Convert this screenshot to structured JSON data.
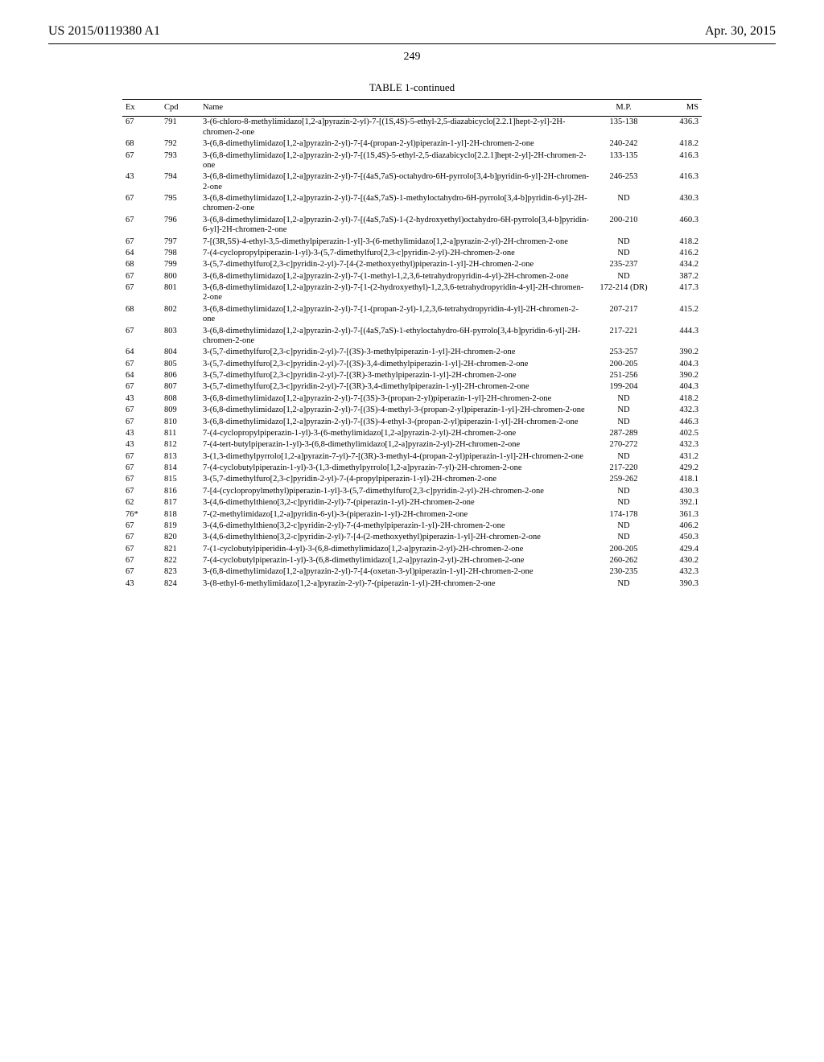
{
  "header": {
    "pub_number": "US 2015/0119380 A1",
    "pub_date": "Apr. 30, 2015"
  },
  "page_number": "249",
  "table": {
    "title": "TABLE 1-continued",
    "columns": [
      "Ex",
      "Cpd",
      "Name",
      "M.P.",
      "MS"
    ],
    "rows": [
      {
        "ex": "67",
        "cpd": "791",
        "name": "3-(6-chloro-8-methylimidazo[1,2-a]pyrazin-2-yl)-7-[(1S,4S)-5-ethyl-2,5-diazabicyclo[2.2.1]hept-2-yl]-2H-chromen-2-one",
        "mp": "135-138",
        "ms": "436.3"
      },
      {
        "ex": "68",
        "cpd": "792",
        "name": "3-(6,8-dimethylimidazo[1,2-a]pyrazin-2-yl)-7-[4-(propan-2-yl)piperazin-1-yl]-2H-chromen-2-one",
        "mp": "240-242",
        "ms": "418.2"
      },
      {
        "ex": "67",
        "cpd": "793",
        "name": "3-(6,8-dimethylimidazo[1,2-a]pyrazin-2-yl)-7-[(1S,4S)-5-ethyl-2,5-diazabicyclo[2.2.1]hept-2-yl]-2H-chromen-2-one",
        "mp": "133-135",
        "ms": "416.3"
      },
      {
        "ex": "43",
        "cpd": "794",
        "name": "3-(6,8-dimethylimidazo[1,2-a]pyrazin-2-yl)-7-[(4aS,7aS)-octahydro-6H-pyrrolo[3,4-b]pyridin-6-yl]-2H-chromen-2-one",
        "mp": "246-253",
        "ms": "416.3"
      },
      {
        "ex": "67",
        "cpd": "795",
        "name": "3-(6,8-dimethylimidazo[1,2-a]pyrazin-2-yl)-7-[(4aS,7aS)-1-methyloctahydro-6H-pyrrolo[3,4-b]pyridin-6-yl]-2H-chromen-2-one",
        "mp": "ND",
        "ms": "430.3"
      },
      {
        "ex": "67",
        "cpd": "796",
        "name": "3-(6,8-dimethylimidazo[1,2-a]pyrazin-2-yl)-7-[(4aS,7aS)-1-(2-hydroxyethyl)octahydro-6H-pyrrolo[3,4-b]pyridin-6-yl]-2H-chromen-2-one",
        "mp": "200-210",
        "ms": "460.3"
      },
      {
        "ex": "67",
        "cpd": "797",
        "name": "7-[(3R,5S)-4-ethyl-3,5-dimethylpiperazin-1-yl]-3-(6-methylimidazo[1,2-a]pyrazin-2-yl)-2H-chromen-2-one",
        "mp": "ND",
        "ms": "418.2"
      },
      {
        "ex": "64",
        "cpd": "798",
        "name": "7-(4-cyclopropylpiperazin-1-yl)-3-(5,7-dimethylfuro[2,3-c]pyridin-2-yl)-2H-chromen-2-one",
        "mp": "ND",
        "ms": "416.2"
      },
      {
        "ex": "68",
        "cpd": "799",
        "name": "3-(5,7-dimethylfuro[2,3-c]pyridin-2-yl)-7-[4-(2-methoxyethyl)piperazin-1-yl]-2H-chromen-2-one",
        "mp": "235-237",
        "ms": "434.2"
      },
      {
        "ex": "67",
        "cpd": "800",
        "name": "3-(6,8-dimethylimidazo[1,2-a]pyrazin-2-yl)-7-(1-methyl-1,2,3,6-tetrahydropyridin-4-yl)-2H-chromen-2-one",
        "mp": "ND",
        "ms": "387.2"
      },
      {
        "ex": "67",
        "cpd": "801",
        "name": "3-(6,8-dimethylimidazo[1,2-a]pyrazin-2-yl)-7-[1-(2-hydroxyethyl)-1,2,3,6-tetrahydropyridin-4-yl]-2H-chromen-2-one",
        "mp": "172-214 (DR)",
        "ms": "417.3"
      },
      {
        "ex": "68",
        "cpd": "802",
        "name": "3-(6,8-dimethylimidazo[1,2-a]pyrazin-2-yl)-7-[1-(propan-2-yl)-1,2,3,6-tetrahydropyridin-4-yl]-2H-chromen-2-one",
        "mp": "207-217",
        "ms": "415.2"
      },
      {
        "ex": "67",
        "cpd": "803",
        "name": "3-(6,8-dimethylimidazo[1,2-a]pyrazin-2-yl)-7-[(4aS,7aS)-1-ethyloctahydro-6H-pyrrolo[3,4-b]pyridin-6-yl]-2H-chromen-2-one",
        "mp": "217-221",
        "ms": "444.3"
      },
      {
        "ex": "64",
        "cpd": "804",
        "name": "3-(5,7-dimethylfuro[2,3-c]pyridin-2-yl)-7-[(3S)-3-methylpiperazin-1-yl]-2H-chromen-2-one",
        "mp": "253-257",
        "ms": "390.2"
      },
      {
        "ex": "67",
        "cpd": "805",
        "name": "3-(5,7-dimethylfuro[2,3-c]pyridin-2-yl)-7-[(3S)-3,4-dimethylpiperazin-1-yl]-2H-chromen-2-one",
        "mp": "200-205",
        "ms": "404.3"
      },
      {
        "ex": "64",
        "cpd": "806",
        "name": "3-(5,7-dimethylfuro[2,3-c]pyridin-2-yl)-7-[(3R)-3-methylpiperazin-1-yl]-2H-chromen-2-one",
        "mp": "251-256",
        "ms": "390.2"
      },
      {
        "ex": "67",
        "cpd": "807",
        "name": "3-(5,7-dimethylfuro[2,3-c]pyridin-2-yl)-7-[(3R)-3,4-dimethylpiperazin-1-yl]-2H-chromen-2-one",
        "mp": "199-204",
        "ms": "404.3"
      },
      {
        "ex": "43",
        "cpd": "808",
        "name": "3-(6,8-dimethylimidazo[1,2-a]pyrazin-2-yl)-7-[(3S)-3-(propan-2-yl)piperazin-1-yl]-2H-chromen-2-one",
        "mp": "ND",
        "ms": "418.2"
      },
      {
        "ex": "67",
        "cpd": "809",
        "name": "3-(6,8-dimethylimidazo[1,2-a]pyrazin-2-yl)-7-[(3S)-4-methyl-3-(propan-2-yl)piperazin-1-yl]-2H-chromen-2-one",
        "mp": "ND",
        "ms": "432.3"
      },
      {
        "ex": "67",
        "cpd": "810",
        "name": "3-(6,8-dimethylimidazo[1,2-a]pyrazin-2-yl)-7-[(3S)-4-ethyl-3-(propan-2-yl)piperazin-1-yl]-2H-chromen-2-one",
        "mp": "ND",
        "ms": "446.3"
      },
      {
        "ex": "43",
        "cpd": "811",
        "name": "7-(4-cyclopropylpiperazin-1-yl)-3-(6-methylimidazo[1,2-a]pyrazin-2-yl)-2H-chromen-2-one",
        "mp": "287-289",
        "ms": "402.5"
      },
      {
        "ex": "43",
        "cpd": "812",
        "name": "7-(4-tert-butylpiperazin-1-yl)-3-(6,8-dimethylimidazo[1,2-a]pyrazin-2-yl)-2H-chromen-2-one",
        "mp": "270-272",
        "ms": "432.3"
      },
      {
        "ex": "67",
        "cpd": "813",
        "name": "3-(1,3-dimethylpyrrolo[1,2-a]pyrazin-7-yl)-7-[(3R)-3-methyl-4-(propan-2-yl)piperazin-1-yl]-2H-chromen-2-one",
        "mp": "ND",
        "ms": "431.2"
      },
      {
        "ex": "67",
        "cpd": "814",
        "name": "7-(4-cyclobutylpiperazin-1-yl)-3-(1,3-dimethylpyrrolo[1,2-a]pyrazin-7-yl)-2H-chromen-2-one",
        "mp": "217-220",
        "ms": "429.2"
      },
      {
        "ex": "67",
        "cpd": "815",
        "name": "3-(5,7-dimethylfuro[2,3-c]pyridin-2-yl)-7-(4-propylpiperazin-1-yl)-2H-chromen-2-one",
        "mp": "259-262",
        "ms": "418.1"
      },
      {
        "ex": "67",
        "cpd": "816",
        "name": "7-[4-(cyclopropylmethyl)piperazin-1-yl]-3-(5,7-dimethylfuro[2,3-c]pyridin-2-yl)-2H-chromen-2-one",
        "mp": "ND",
        "ms": "430.3"
      },
      {
        "ex": "62",
        "cpd": "817",
        "name": "3-(4,6-dimethylthieno[3,2-c]pyridin-2-yl)-7-(piperazin-1-yl)-2H-chromen-2-one",
        "mp": "ND",
        "ms": "392.1"
      },
      {
        "ex": "76*",
        "cpd": "818",
        "name": "7-(2-methylimidazo[1,2-a]pyridin-6-yl)-3-(piperazin-1-yl)-2H-chromen-2-one",
        "mp": "174-178",
        "ms": "361.3"
      },
      {
        "ex": "67",
        "cpd": "819",
        "name": "3-(4,6-dimethylthieno[3,2-c]pyridin-2-yl)-7-(4-methylpiperazin-1-yl)-2H-chromen-2-one",
        "mp": "ND",
        "ms": "406.2"
      },
      {
        "ex": "67",
        "cpd": "820",
        "name": "3-(4,6-dimethylthieno[3,2-c]pyridin-2-yl)-7-[4-(2-methoxyethyl)piperazin-1-yl]-2H-chromen-2-one",
        "mp": "ND",
        "ms": "450.3"
      },
      {
        "ex": "67",
        "cpd": "821",
        "name": "7-(1-cyclobutylpiperidin-4-yl)-3-(6,8-dimethylimidazo[1,2-a]pyrazin-2-yl)-2H-chromen-2-one",
        "mp": "200-205",
        "ms": "429.4"
      },
      {
        "ex": "67",
        "cpd": "822",
        "name": "7-(4-cyclobutylpiperazin-1-yl)-3-(6,8-dimethylimidazo[1,2-a]pyrazin-2-yl)-2H-chromen-2-one",
        "mp": "260-262",
        "ms": "430.2"
      },
      {
        "ex": "67",
        "cpd": "823",
        "name": "3-(6,8-dimethylimidazo[1,2-a]pyrazin-2-yl)-7-[4-(oxetan-3-yl)piperazin-1-yl]-2H-chromen-2-one",
        "mp": "230-235",
        "ms": "432.3"
      },
      {
        "ex": "43",
        "cpd": "824",
        "name": "3-(8-ethyl-6-methylimidazo[1,2-a]pyrazin-2-yl)-7-(piperazin-1-yl)-2H-chromen-2-one",
        "mp": "ND",
        "ms": "390.3"
      }
    ]
  }
}
